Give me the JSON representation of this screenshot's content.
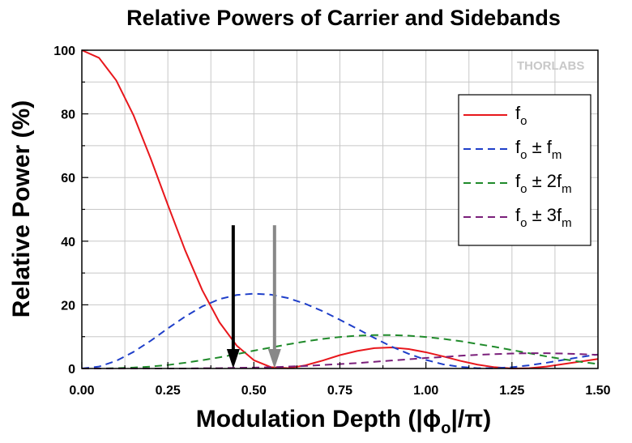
{
  "chart_data": {
    "type": "line",
    "title": "Relative Powers of Carrier and Sidebands",
    "xlabel": "Modulation Depth (|ϕo|/π)",
    "xlabel_parts": {
      "pre": "Modulation Depth (|ϕ",
      "sub": "o",
      "post": "|/π)"
    },
    "ylabel": "Relative Power (%)",
    "xlim": [
      0,
      1.5
    ],
    "ylim": [
      0,
      100
    ],
    "xticks": [
      "0.00",
      "0.25",
      "0.50",
      "0.75",
      "1.00",
      "1.25",
      "1.50"
    ],
    "yticks": [
      "0",
      "20",
      "40",
      "60",
      "80",
      "100"
    ],
    "grid": true,
    "legend_position": "right",
    "logo": "THORLABS",
    "series": [
      {
        "name": "fo",
        "color": "#e8171c",
        "dash": "solid",
        "x": [
          0,
          0.05,
          0.1,
          0.15,
          0.2,
          0.25,
          0.3,
          0.35,
          0.4,
          0.45,
          0.5,
          0.55,
          0.6,
          0.65,
          0.7,
          0.75,
          0.8,
          0.85,
          0.9,
          0.95,
          1.0,
          1.05,
          1.1,
          1.15,
          1.2,
          1.25,
          1.3,
          1.35,
          1.4,
          1.45,
          1.5
        ],
        "y": [
          100,
          97.6,
          90.5,
          79.6,
          66.0,
          51.4,
          37.2,
          24.6,
          14.5,
          7.2,
          2.6,
          0.4,
          0.1,
          1.0,
          2.5,
          4.2,
          5.5,
          6.4,
          6.6,
          6.1,
          5.1,
          3.8,
          2.4,
          1.2,
          0.4,
          0.0,
          0.1,
          0.6,
          1.4,
          2.2,
          3.0
        ],
        "legend_main": "f",
        "legend_sub": "o",
        "legend_rest": "",
        "legend_sub2": ""
      },
      {
        "name": "fo ± fm",
        "color": "#1f3fc9",
        "dash": "dashed",
        "x": [
          0,
          0.05,
          0.1,
          0.15,
          0.2,
          0.25,
          0.3,
          0.35,
          0.4,
          0.45,
          0.5,
          0.55,
          0.6,
          0.65,
          0.7,
          0.75,
          0.8,
          0.85,
          0.9,
          0.95,
          1.0,
          1.05,
          1.1,
          1.15,
          1.2,
          1.25,
          1.3,
          1.35,
          1.4,
          1.45,
          1.5
        ],
        "y": [
          0,
          0.6,
          2.4,
          5.2,
          8.7,
          12.6,
          16.3,
          19.5,
          21.8,
          23.1,
          23.5,
          23.2,
          22.1,
          20.3,
          18.0,
          15.3,
          12.5,
          9.6,
          6.9,
          4.6,
          2.7,
          1.3,
          0.5,
          0.1,
          0.1,
          0.4,
          1.0,
          1.8,
          2.7,
          3.6,
          4.4
        ],
        "legend_main": "f",
        "legend_sub": "o",
        "legend_rest": " ± f",
        "legend_sub2": "m"
      },
      {
        "name": "fo ± 2fm",
        "color": "#1f8a2a",
        "dash": "dashed",
        "x": [
          0,
          0.05,
          0.1,
          0.15,
          0.2,
          0.25,
          0.3,
          0.35,
          0.4,
          0.45,
          0.5,
          0.55,
          0.6,
          0.65,
          0.7,
          0.75,
          0.8,
          0.85,
          0.9,
          0.95,
          1.0,
          1.05,
          1.1,
          1.15,
          1.2,
          1.25,
          1.3,
          1.35,
          1.4,
          1.45,
          1.5
        ],
        "y": [
          0,
          0.0,
          0.1,
          0.3,
          0.6,
          1.1,
          1.8,
          2.6,
          3.5,
          4.5,
          5.6,
          6.6,
          7.6,
          8.5,
          9.3,
          9.9,
          10.3,
          10.5,
          10.5,
          10.3,
          9.9,
          9.3,
          8.6,
          7.7,
          6.8,
          5.8,
          4.8,
          3.8,
          2.9,
          2.1,
          1.4
        ],
        "legend_main": "f",
        "legend_sub": "o",
        "legend_rest": " ± 2f",
        "legend_sub2": "m"
      },
      {
        "name": "fo ± 3fm",
        "color": "#7a1f7a",
        "dash": "dashed",
        "x": [
          0,
          0.05,
          0.1,
          0.15,
          0.2,
          0.25,
          0.3,
          0.35,
          0.4,
          0.45,
          0.5,
          0.55,
          0.6,
          0.65,
          0.7,
          0.75,
          0.8,
          0.85,
          0.9,
          0.95,
          1.0,
          1.05,
          1.1,
          1.15,
          1.2,
          1.25,
          1.3,
          1.35,
          1.4,
          1.45,
          1.5
        ],
        "y": [
          0,
          0.0,
          0.0,
          0.0,
          0.0,
          0.0,
          0.0,
          0.1,
          0.1,
          0.2,
          0.3,
          0.4,
          0.6,
          0.8,
          1.1,
          1.4,
          1.7,
          2.1,
          2.5,
          2.9,
          3.3,
          3.6,
          4.0,
          4.3,
          4.5,
          4.7,
          4.8,
          4.8,
          4.7,
          4.5,
          4.3
        ],
        "legend_main": "f",
        "legend_sub": "o",
        "legend_rest": " ± 3f",
        "legend_sub2": "m"
      }
    ],
    "annotations": [
      {
        "type": "arrow",
        "x": 0.44,
        "y_start": 45,
        "y_end": 0,
        "color": "#000000"
      },
      {
        "type": "arrow",
        "x": 0.56,
        "y_start": 45,
        "y_end": 0,
        "color": "#888888"
      }
    ]
  }
}
